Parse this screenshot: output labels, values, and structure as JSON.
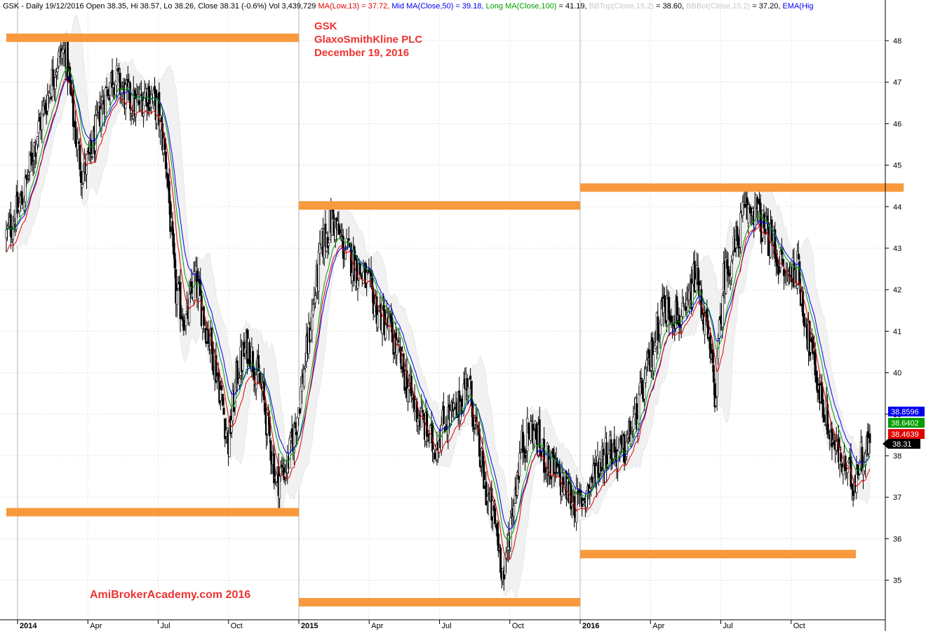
{
  "header": {
    "prefix": "GSK - Daily 19/12/2016 Open 38.35, Hi 38.57, Lo 38.26, Close 38.31 (-0.6%) Vol 3,439,729 ",
    "ma_low": "MA(Low,13) = 37.72,",
    "mid_ma": "Mid MA(Close,50) = 39.18,",
    "long_ma": "Long MA(Close,100) = 41.19,",
    "bbtop_label": "BBTop(Close,15,2)",
    "bbtop_value": "= 38.60,",
    "bbbot_label": "BBBot(Close,15,2)",
    "bbbot_value": "= 37.20,",
    "ema": "EMA(Hig"
  },
  "title": {
    "line1": "GSK",
    "line2": "GlaxoSmithKline PLC",
    "line3": "December 19, 2016"
  },
  "watermark": "AmiBrokerAcademy.com  2016",
  "price_badges": {
    "blue": "38.8596",
    "green": "38.6402",
    "red": "38.4639",
    "black": "38.31"
  },
  "colors": {
    "candle": "#000000",
    "band_fill": "#f1f1f1",
    "ma_low": "#e00000",
    "mid_ma": "#0000ee",
    "long_ma": "#00a000",
    "level": "#f7993c",
    "title": "#ee3333",
    "watermark": "#ee3333"
  },
  "chart_data": {
    "type": "candlestick",
    "symbol": "GSK",
    "ylim": [
      34.3,
      48.9
    ],
    "yticks": [
      35,
      36,
      37,
      38,
      39,
      40,
      41,
      42,
      43,
      44,
      45,
      46,
      47,
      48
    ],
    "xticks": [
      {
        "label": "2014",
        "t": 0.0,
        "year": true
      },
      {
        "label": "Apr",
        "t": 0.25,
        "year": false
      },
      {
        "label": "Jul",
        "t": 0.5,
        "year": false
      },
      {
        "label": "Oct",
        "t": 0.75,
        "year": false
      },
      {
        "label": "2015",
        "t": 1.0,
        "year": true
      },
      {
        "label": "Apr",
        "t": 1.25,
        "year": false
      },
      {
        "label": "Jul",
        "t": 1.5,
        "year": false
      },
      {
        "label": "Oct",
        "t": 1.75,
        "year": false
      },
      {
        "label": "2016",
        "t": 2.0,
        "year": true
      },
      {
        "label": "Apr",
        "t": 2.25,
        "year": false
      },
      {
        "label": "Jul",
        "t": 2.5,
        "year": false
      },
      {
        "label": "Oct",
        "t": 2.75,
        "year": false
      }
    ],
    "t_range": [
      -0.04,
      3.03
    ],
    "anchors": [
      [
        -0.04,
        43.3
      ],
      [
        0.02,
        44.2
      ],
      [
        0.06,
        45.5
      ],
      [
        0.1,
        46.5
      ],
      [
        0.14,
        47.5
      ],
      [
        0.17,
        47.8
      ],
      [
        0.2,
        46.0
      ],
      [
        0.23,
        44.8
      ],
      [
        0.26,
        45.2
      ],
      [
        0.3,
        46.5
      ],
      [
        0.34,
        47.2
      ],
      [
        0.38,
        46.7
      ],
      [
        0.42,
        46.4
      ],
      [
        0.46,
        46.8
      ],
      [
        0.5,
        46.3
      ],
      [
        0.53,
        45.0
      ],
      [
        0.56,
        42.0
      ],
      [
        0.6,
        41.2
      ],
      [
        0.63,
        42.3
      ],
      [
        0.66,
        41.4
      ],
      [
        0.69,
        40.6
      ],
      [
        0.72,
        39.6
      ],
      [
        0.75,
        38.3
      ],
      [
        0.78,
        40.0
      ],
      [
        0.82,
        40.7
      ],
      [
        0.87,
        39.5
      ],
      [
        0.92,
        37.4
      ],
      [
        0.96,
        37.8
      ],
      [
        0.99,
        38.8
      ],
      [
        1.03,
        40.6
      ],
      [
        1.08,
        43.0
      ],
      [
        1.12,
        43.7
      ],
      [
        1.16,
        43.0
      ],
      [
        1.2,
        42.6
      ],
      [
        1.24,
        42.2
      ],
      [
        1.28,
        41.5
      ],
      [
        1.32,
        41.1
      ],
      [
        1.36,
        40.3
      ],
      [
        1.4,
        39.4
      ],
      [
        1.44,
        38.8
      ],
      [
        1.48,
        38.2
      ],
      [
        1.52,
        38.9
      ],
      [
        1.56,
        39.0
      ],
      [
        1.6,
        39.9
      ],
      [
        1.63,
        38.6
      ],
      [
        1.66,
        37.3
      ],
      [
        1.7,
        36.3
      ],
      [
        1.73,
        35.0
      ],
      [
        1.75,
        36.3
      ],
      [
        1.79,
        38.2
      ],
      [
        1.83,
        38.7
      ],
      [
        1.87,
        38.0
      ],
      [
        1.91,
        37.6
      ],
      [
        1.95,
        37.2
      ],
      [
        1.99,
        36.8
      ],
      [
        2.03,
        37.2
      ],
      [
        2.06,
        37.8
      ],
      [
        2.1,
        38.2
      ],
      [
        2.15,
        38.0
      ],
      [
        2.2,
        39.0
      ],
      [
        2.25,
        40.3
      ],
      [
        2.29,
        41.6
      ],
      [
        2.33,
        41.5
      ],
      [
        2.37,
        41.2
      ],
      [
        2.41,
        42.4
      ],
      [
        2.45,
        41.0
      ],
      [
        2.48,
        39.5
      ],
      [
        2.51,
        42.3
      ],
      [
        2.55,
        43.0
      ],
      [
        2.58,
        43.8
      ],
      [
        2.62,
        44.0
      ],
      [
        2.65,
        43.5
      ],
      [
        2.69,
        43.0
      ],
      [
        2.73,
        42.3
      ],
      [
        2.77,
        42.6
      ],
      [
        2.81,
        40.9
      ],
      [
        2.85,
        39.6
      ],
      [
        2.89,
        38.5
      ],
      [
        2.93,
        37.8
      ],
      [
        2.97,
        37.4
      ],
      [
        3.0,
        38.0
      ],
      [
        3.03,
        38.31
      ]
    ],
    "levels": [
      {
        "price": 48.07,
        "t_from": -0.04,
        "t_to": 1.0
      },
      {
        "price": 36.64,
        "t_from": -0.04,
        "t_to": 1.0
      },
      {
        "price": 44.03,
        "t_from": 1.0,
        "t_to": 2.0
      },
      {
        "price": 34.47,
        "t_from": 1.0,
        "t_to": 2.0
      },
      {
        "price": 44.46,
        "t_from": 2.0,
        "t_to": 3.15
      },
      {
        "price": 35.63,
        "t_from": 2.0,
        "t_to": 2.98
      }
    ]
  }
}
